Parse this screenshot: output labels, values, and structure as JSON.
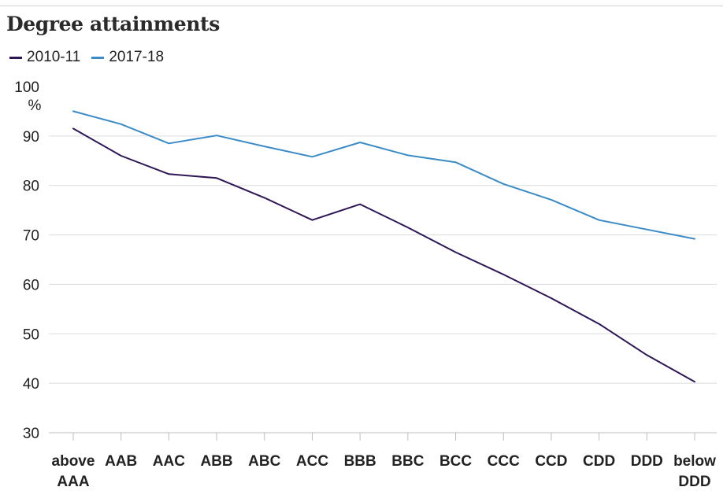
{
  "chart_data": {
    "type": "line",
    "title": "Degree attainments",
    "ylabel": "%",
    "xlabel": "",
    "ylim": [
      30,
      100
    ],
    "yticks": [
      30,
      40,
      50,
      60,
      70,
      80,
      90,
      100
    ],
    "grid": true,
    "legend_position": "top-left",
    "categories": [
      "above AAA",
      "AAB",
      "AAC",
      "ABB",
      "ABC",
      "ACC",
      "BBB",
      "BBC",
      "BCC",
      "CCC",
      "CCD",
      "CDD",
      "DDD",
      "below DDD"
    ],
    "series": [
      {
        "name": "2010-11",
        "color": "#2d1656",
        "values": [
          91.5,
          86.0,
          82.3,
          81.5,
          77.5,
          73.0,
          76.2,
          71.5,
          66.5,
          62.0,
          57.2,
          52.0,
          45.7,
          40.3
        ]
      },
      {
        "name": "2017-18",
        "color": "#3b8bc6",
        "values": [
          95.0,
          92.4,
          88.5,
          90.1,
          87.9,
          85.8,
          88.7,
          86.1,
          84.7,
          80.3,
          77.1,
          73.0,
          71.1,
          69.2
        ]
      }
    ]
  }
}
